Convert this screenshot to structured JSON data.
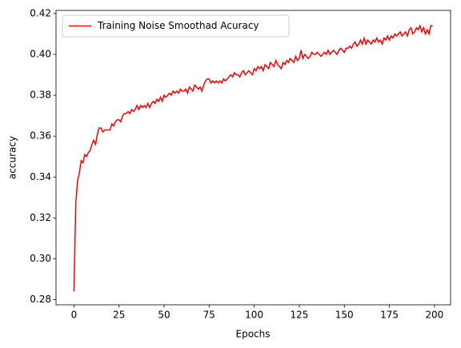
{
  "chart_data": {
    "type": "line",
    "xlabel": "Epochs",
    "ylabel": "accuracy",
    "x": [
      0,
      1,
      2,
      3,
      4,
      5,
      6,
      7,
      8,
      9,
      10,
      11,
      12,
      13,
      14,
      15,
      16,
      17,
      18,
      19,
      20,
      21,
      22,
      23,
      24,
      25,
      26,
      27,
      28,
      29,
      30,
      31,
      32,
      33,
      34,
      35,
      36,
      37,
      38,
      39,
      40,
      41,
      42,
      43,
      44,
      45,
      46,
      47,
      48,
      49,
      50,
      51,
      52,
      53,
      54,
      55,
      56,
      57,
      58,
      59,
      60,
      61,
      62,
      63,
      64,
      65,
      66,
      67,
      68,
      69,
      70,
      71,
      72,
      73,
      74,
      75,
      76,
      77,
      78,
      79,
      80,
      81,
      82,
      83,
      84,
      85,
      86,
      87,
      88,
      89,
      90,
      91,
      92,
      93,
      94,
      95,
      96,
      97,
      98,
      99,
      100,
      101,
      102,
      103,
      104,
      105,
      106,
      107,
      108,
      109,
      110,
      111,
      112,
      113,
      114,
      115,
      116,
      117,
      118,
      119,
      120,
      121,
      122,
      123,
      124,
      125,
      126,
      127,
      128,
      129,
      130,
      131,
      132,
      133,
      134,
      135,
      136,
      137,
      138,
      139,
      140,
      141,
      142,
      143,
      144,
      145,
      146,
      147,
      148,
      149,
      150,
      151,
      152,
      153,
      154,
      155,
      156,
      157,
      158,
      159,
      160,
      161,
      162,
      163,
      164,
      165,
      166,
      167,
      168,
      169,
      170,
      171,
      172,
      173,
      174,
      175,
      176,
      177,
      178,
      179,
      180,
      181,
      182,
      183,
      184,
      185,
      186,
      187,
      188,
      189,
      190,
      191,
      192,
      193,
      194,
      195,
      196,
      197,
      198,
      199
    ],
    "series": [
      {
        "name": "Training Noise Smoothad Acuracy",
        "color": "#ff0000",
        "values": [
          0.284,
          0.327,
          0.338,
          0.342,
          0.348,
          0.347,
          0.351,
          0.35,
          0.352,
          0.353,
          0.356,
          0.358,
          0.356,
          0.361,
          0.364,
          0.364,
          0.362,
          0.363,
          0.363,
          0.363,
          0.363,
          0.366,
          0.365,
          0.367,
          0.368,
          0.368,
          0.367,
          0.37,
          0.371,
          0.371,
          0.372,
          0.371,
          0.373,
          0.372,
          0.373,
          0.375,
          0.373,
          0.375,
          0.374,
          0.375,
          0.374,
          0.376,
          0.374,
          0.376,
          0.377,
          0.376,
          0.378,
          0.377,
          0.379,
          0.377,
          0.38,
          0.379,
          0.38,
          0.381,
          0.38,
          0.382,
          0.381,
          0.382,
          0.381,
          0.383,
          0.382,
          0.382,
          0.383,
          0.381,
          0.384,
          0.383,
          0.382,
          0.385,
          0.384,
          0.383,
          0.384,
          0.382,
          0.385,
          0.387,
          0.388,
          0.388,
          0.386,
          0.387,
          0.386,
          0.387,
          0.386,
          0.387,
          0.386,
          0.388,
          0.387,
          0.388,
          0.389,
          0.39,
          0.389,
          0.391,
          0.39,
          0.39,
          0.389,
          0.391,
          0.392,
          0.39,
          0.391,
          0.392,
          0.391,
          0.39,
          0.393,
          0.392,
          0.394,
          0.393,
          0.394,
          0.392,
          0.395,
          0.394,
          0.393,
          0.396,
          0.395,
          0.394,
          0.397,
          0.395,
          0.394,
          0.393,
          0.396,
          0.395,
          0.397,
          0.396,
          0.398,
          0.397,
          0.396,
          0.399,
          0.397,
          0.398,
          0.402,
          0.398,
          0.4,
          0.399,
          0.398,
          0.399,
          0.401,
          0.4,
          0.4,
          0.401,
          0.4,
          0.399,
          0.4,
          0.401,
          0.4,
          0.402,
          0.4,
          0.401,
          0.402,
          0.401,
          0.4,
          0.402,
          0.403,
          0.402,
          0.401,
          0.403,
          0.403,
          0.404,
          0.403,
          0.405,
          0.406,
          0.404,
          0.405,
          0.407,
          0.405,
          0.408,
          0.405,
          0.407,
          0.406,
          0.405,
          0.407,
          0.406,
          0.408,
          0.406,
          0.407,
          0.405,
          0.408,
          0.407,
          0.409,
          0.407,
          0.409,
          0.408,
          0.41,
          0.409,
          0.41,
          0.411,
          0.409,
          0.41,
          0.411,
          0.409,
          0.412,
          0.413,
          0.41,
          0.411,
          0.413,
          0.412,
          0.414,
          0.411,
          0.413,
          0.41,
          0.412,
          0.41,
          0.414,
          0.414
        ]
      }
    ],
    "xlim": [
      -9.95,
      208.95
    ],
    "xticks": [
      0,
      25,
      50,
      75,
      100,
      125,
      150,
      175,
      200
    ],
    "ylim": [
      0.2775,
      0.4215
    ],
    "yticks": [
      0.28,
      {
        "value": 0.3,
        "label": "0.30"
      },
      0.32,
      0.34,
      0.36,
      0.38,
      {
        "value": 0.4,
        "label": "0.40"
      },
      0.42
    ],
    "grid": false,
    "legend": "upper left"
  }
}
